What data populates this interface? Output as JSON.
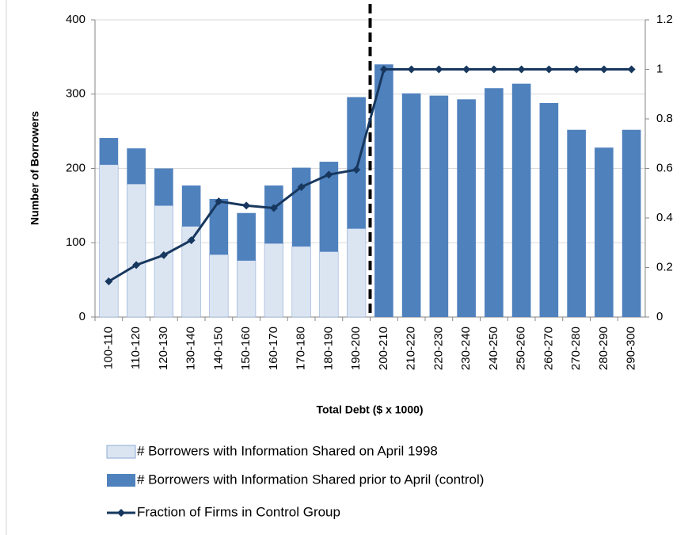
{
  "chart_data": {
    "type": "stacked-bar-line",
    "x_label": "Total Debt ($ x 1000)",
    "y_label": "Number of Borrowers",
    "categories": [
      "100-110",
      "110-120",
      "120-130",
      "130-140",
      "140-150",
      "150-160",
      "160-170",
      "170-180",
      "180-190",
      "190-200",
      "200-210",
      "210-220",
      "220-230",
      "230-240",
      "240-250",
      "250-260",
      "260-270",
      "270-280",
      "280-290",
      "290-300"
    ],
    "series": [
      {
        "name": "# Borrowers with Information Shared on April 1998",
        "color": "#dbe5f1",
        "type": "bar",
        "values": [
          205,
          179,
          150,
          122,
          84,
          76,
          99,
          95,
          88,
          119,
          0,
          0,
          0,
          0,
          0,
          0,
          0,
          0,
          0,
          0
        ]
      },
      {
        "name": "# Borrowers with Information Shared prior to April (control)",
        "color": "#4f81bd",
        "type": "bar",
        "values": [
          36,
          48,
          50,
          55,
          75,
          64,
          78,
          106,
          121,
          177,
          340,
          301,
          298,
          293,
          308,
          314,
          288,
          252,
          228,
          252
        ]
      },
      {
        "name": "Fraction of Firms in Control Group",
        "color": "#17375e",
        "type": "line",
        "axis": "y2",
        "values": [
          0.144,
          0.21,
          0.25,
          0.31,
          0.467,
          0.45,
          0.44,
          0.525,
          0.575,
          0.595,
          1,
          1,
          1,
          1,
          1,
          1,
          1,
          1,
          1,
          1
        ]
      }
    ],
    "ylim": [
      0,
      400
    ],
    "yticks": [
      0,
      100,
      200,
      300,
      400
    ],
    "y2lim": [
      0,
      1.2
    ],
    "y2ticks": [
      0,
      0.2,
      0.4,
      0.6,
      0.8,
      1,
      1.2
    ],
    "grid": true
  }
}
